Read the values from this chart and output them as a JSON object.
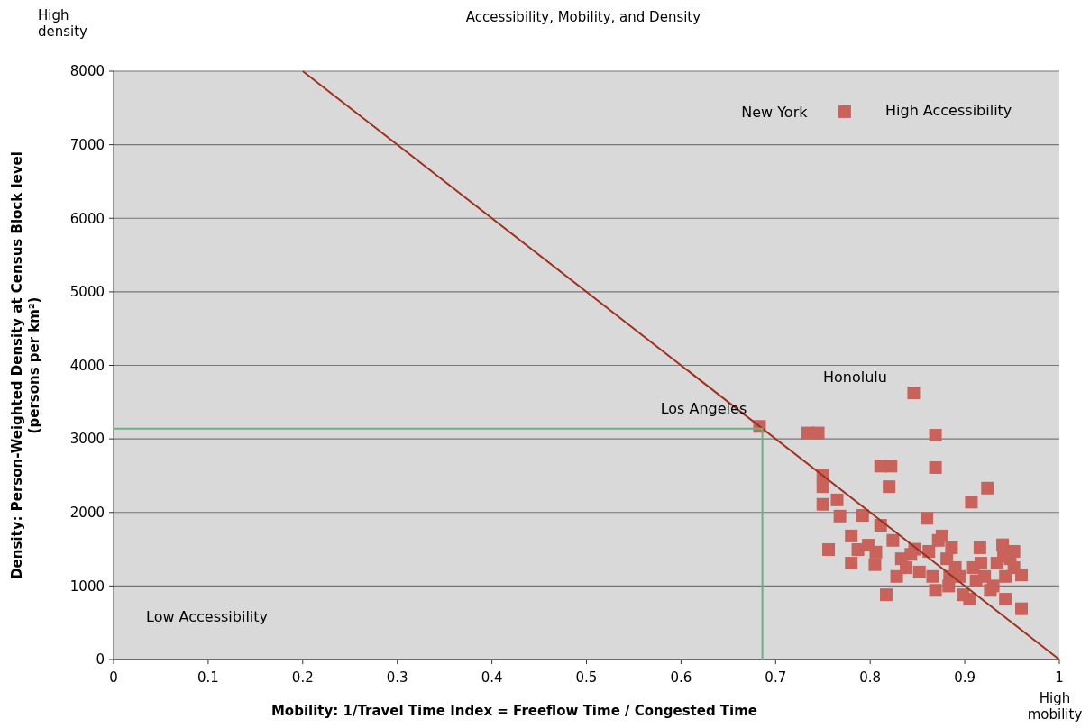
{
  "chart_data": {
    "type": "scatter",
    "title": "Accessibility, Mobility, and Density",
    "xlabel": "Mobility: 1/Travel Time Index = Freeflow Time / Congested Time",
    "ylabel": "Density: Person-Weighted Density at Census Block level\n(persons per km²)",
    "xlim": [
      0,
      1
    ],
    "xticks": [
      0,
      0.1,
      0.2,
      0.3,
      0.4,
      0.5,
      0.6,
      0.7,
      0.8,
      0.9,
      1
    ],
    "ylim": [
      0,
      8000
    ],
    "yticks": [
      0,
      1000,
      2000,
      3000,
      4000,
      5000,
      6000,
      7000,
      8000
    ],
    "grid": "y",
    "annotations": [
      "High density",
      "High mobility",
      {
        "text": "New York",
        "x": 0.773,
        "y": 7450
      },
      "High Accessibility",
      "Low Accessibility",
      {
        "text": "Los Angeles",
        "x": 0.683,
        "y": 3170
      },
      {
        "text": "Honolulu",
        "x": 0.846,
        "y": 3626
      }
    ],
    "series": [
      {
        "color": "#c8625a",
        "marker": "square",
        "x": [
          0.773
        ],
        "values": [
          7450
        ]
      },
      {
        "color": "#c8625a",
        "marker": "square",
        "x": [
          0.683,
          0.734,
          0.745,
          0.846,
          0.75,
          0.75,
          0.75,
          0.765,
          0.768,
          0.792,
          0.756,
          0.78,
          0.787,
          0.798,
          0.806,
          0.78,
          0.805,
          0.811,
          0.811,
          0.822,
          0.82,
          0.817,
          0.824,
          0.828,
          0.833,
          0.838,
          0.843,
          0.847,
          0.852,
          0.86,
          0.869,
          0.869,
          0.862,
          0.866,
          0.872,
          0.876,
          0.869,
          0.881,
          0.884,
          0.886,
          0.89,
          0.883,
          0.895,
          0.898,
          0.905,
          0.907,
          0.909,
          0.912,
          0.916,
          0.917,
          0.921,
          0.924,
          0.927,
          0.93,
          0.934,
          0.94,
          0.941,
          0.943,
          0.943,
          0.948,
          0.952,
          0.952,
          0.96,
          0.96
        ],
        "values": [
          3170,
          3080,
          3080,
          3626,
          2510,
          2350,
          2110,
          2170,
          1950,
          1960,
          1495,
          1680,
          1495,
          1555,
          1460,
          1310,
          1290,
          2630,
          1825,
          2630,
          2350,
          880,
          1620,
          1130,
          1370,
          1250,
          1430,
          1500,
          1190,
          1920,
          3050,
          2610,
          1470,
          1130,
          1620,
          1680,
          940,
          1370,
          1130,
          1520,
          1250,
          1000,
          1130,
          880,
          820,
          2140,
          1250,
          1070,
          1520,
          1310,
          1130,
          2330,
          940,
          1000,
          1310,
          1560,
          1410,
          1130,
          820,
          1370,
          1470,
          1250,
          690,
          1150
        ]
      },
      {
        "type": "line",
        "color": "#a0301e",
        "x": [
          0.2,
          1
        ],
        "values": [
          8000,
          0
        ]
      },
      {
        "type": "line",
        "color": "#6fb07f",
        "x": [
          0,
          0.686,
          0.686
        ],
        "values": [
          3140,
          3140,
          0
        ]
      }
    ]
  }
}
